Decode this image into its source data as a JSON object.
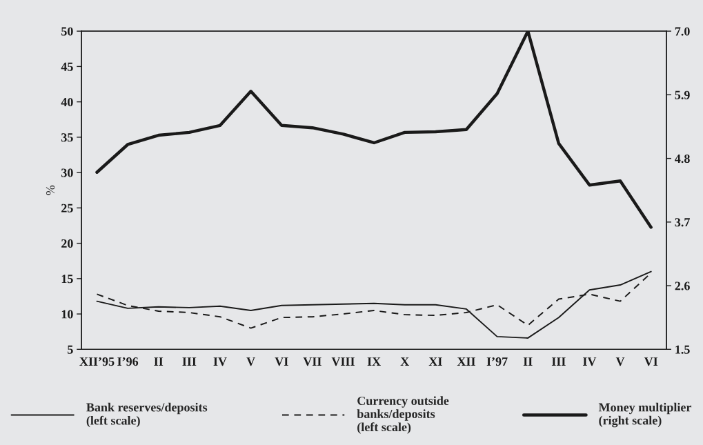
{
  "chart_data": {
    "type": "line",
    "ylabel": "%",
    "categories": [
      "XII’95",
      "I’96",
      "II",
      "III",
      "IV",
      "V",
      "VI",
      "VII",
      "VIII",
      "IX",
      "X",
      "XI",
      "XII",
      "I’97",
      "II",
      "III",
      "IV",
      "V",
      "VI"
    ],
    "series": [
      {
        "name": "Bank reserves/deposits\n(left scale)",
        "color": "#1a1a1a",
        "line_style": "solid",
        "values": [
          11.8,
          10.8,
          11.0,
          10.9,
          11.1,
          10.5,
          11.2,
          11.3,
          11.4,
          11.5,
          11.3,
          11.3,
          10.7,
          6.8,
          6.6,
          9.5,
          13.4,
          14.1,
          16.0
        ]
      },
      {
        "name": "Currency outside\nbanks/deposits\n(left scale)",
        "color": "#1a1a1a",
        "line_style": "dashed",
        "values": [
          12.8,
          11.2,
          10.4,
          10.2,
          9.6,
          8.0,
          9.5,
          9.6,
          10.0,
          10.5,
          9.9,
          9.8,
          10.2,
          11.3,
          8.4,
          12.1,
          12.8,
          11.8,
          15.8
        ]
      },
      {
        "name": "Money multiplier\n(right scale)",
        "color": "#1a1a1a",
        "line_style": "solid",
        "axis": "y2",
        "values": [
          4.56,
          5.04,
          5.2,
          5.25,
          5.37,
          5.96,
          5.37,
          5.33,
          5.22,
          5.07,
          5.25,
          5.26,
          5.3,
          5.92,
          7.0,
          5.06,
          4.34,
          4.41,
          3.61
        ]
      }
    ],
    "ylim": [
      5,
      50
    ],
    "yticks": [
      5,
      10,
      15,
      20,
      25,
      30,
      35,
      40,
      45,
      50
    ],
    "y2lim": [
      1.5,
      7.0
    ],
    "y2ticks": [
      {
        "value": 1.5,
        "label": "1.5"
      },
      {
        "value": 2.6,
        "label": "2.6"
      },
      {
        "value": 3.7,
        "label": "3.7"
      },
      {
        "value": 4.8,
        "label": "4.8"
      },
      {
        "value": 5.9,
        "label": "5.9"
      },
      {
        "value": 7.0,
        "label": "7.0"
      }
    ],
    "grid": false,
    "legend": "bottom",
    "marker": "none"
  }
}
